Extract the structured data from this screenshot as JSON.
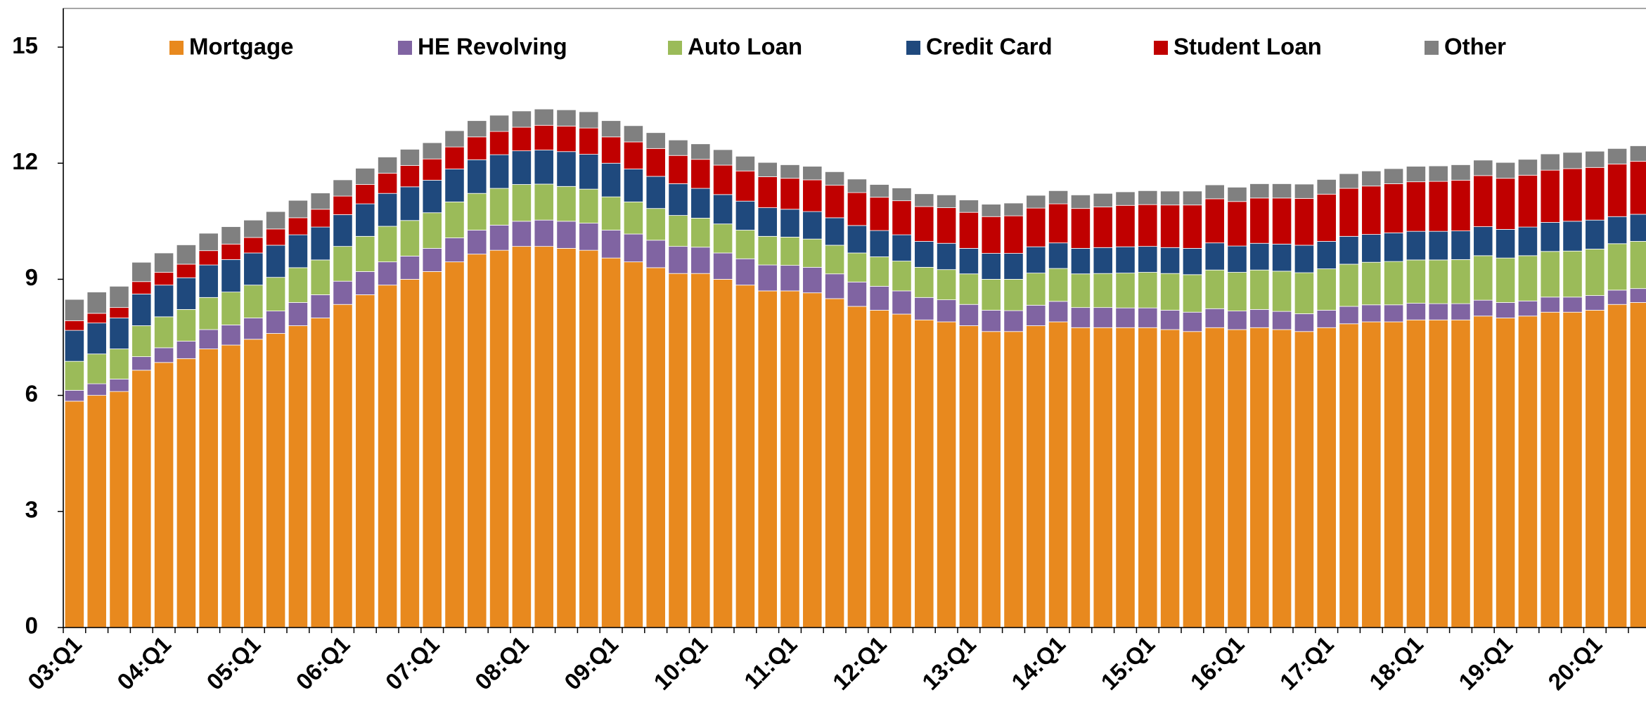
{
  "chart_data": {
    "type": "stacked_bar",
    "categories": [
      "03:Q1",
      null,
      null,
      null,
      "04:Q1",
      null,
      null,
      null,
      "05:Q1",
      null,
      null,
      null,
      "06:Q1",
      null,
      null,
      null,
      "07:Q1",
      null,
      null,
      null,
      "08:Q1",
      null,
      null,
      null,
      "09:Q1",
      null,
      null,
      null,
      "10:Q1",
      null,
      null,
      null,
      "11:Q1",
      null,
      null,
      null,
      "12:Q1",
      null,
      null,
      null,
      "13:Q1",
      null,
      null,
      null,
      "14:Q1",
      null,
      null,
      null,
      "15:Q1",
      null,
      null,
      null,
      "16:Q1",
      null,
      null,
      null,
      "17:Q1",
      null,
      null,
      null,
      "18:Q1",
      null,
      null,
      null,
      "19:Q1",
      null,
      null,
      null,
      "20:Q1",
      null,
      null
    ],
    "series": [
      {
        "name": "Mortgage",
        "color": "#e8891e",
        "values": [
          5.85,
          6.0,
          6.1,
          6.65,
          6.85,
          6.95,
          7.2,
          7.3,
          7.45,
          7.6,
          7.8,
          8.0,
          8.35,
          8.6,
          8.85,
          9.0,
          9.2,
          9.45,
          9.65,
          9.75,
          9.85,
          9.85,
          9.8,
          9.75,
          9.55,
          9.45,
          9.3,
          9.15,
          9.15,
          9.0,
          8.85,
          8.7,
          8.7,
          8.65,
          8.5,
          8.3,
          8.2,
          8.1,
          7.95,
          7.9,
          7.8,
          7.65,
          7.65,
          7.8,
          7.9,
          7.75,
          7.75,
          7.75,
          7.75,
          7.7,
          7.65,
          7.75,
          7.7,
          7.75,
          7.7,
          7.65,
          7.75,
          7.85,
          7.9,
          7.9,
          7.95,
          7.95,
          7.95,
          8.05,
          8.0,
          8.05,
          8.15,
          8.15,
          8.2,
          8.35,
          8.4
        ]
      },
      {
        "name": "HE Revolving",
        "color": "#8064a2",
        "values": [
          0.28,
          0.3,
          0.32,
          0.35,
          0.38,
          0.45,
          0.5,
          0.52,
          0.55,
          0.58,
          0.6,
          0.6,
          0.6,
          0.6,
          0.6,
          0.6,
          0.6,
          0.62,
          0.62,
          0.65,
          0.65,
          0.68,
          0.7,
          0.7,
          0.72,
          0.72,
          0.71,
          0.7,
          0.68,
          0.68,
          0.68,
          0.67,
          0.66,
          0.66,
          0.64,
          0.63,
          0.62,
          0.6,
          0.58,
          0.57,
          0.55,
          0.55,
          0.54,
          0.53,
          0.53,
          0.52,
          0.52,
          0.51,
          0.51,
          0.5,
          0.5,
          0.49,
          0.48,
          0.47,
          0.47,
          0.46,
          0.45,
          0.45,
          0.44,
          0.44,
          0.43,
          0.42,
          0.42,
          0.41,
          0.4,
          0.39,
          0.39,
          0.39,
          0.38,
          0.37,
          0.36
        ]
      },
      {
        "name": "Auto Loan",
        "color": "#9bbb59",
        "values": [
          0.75,
          0.77,
          0.78,
          0.8,
          0.8,
          0.82,
          0.83,
          0.85,
          0.85,
          0.87,
          0.9,
          0.9,
          0.9,
          0.91,
          0.92,
          0.92,
          0.92,
          0.93,
          0.95,
          0.95,
          0.95,
          0.93,
          0.9,
          0.88,
          0.86,
          0.83,
          0.82,
          0.8,
          0.75,
          0.75,
          0.74,
          0.74,
          0.73,
          0.73,
          0.74,
          0.75,
          0.76,
          0.77,
          0.78,
          0.78,
          0.79,
          0.8,
          0.81,
          0.83,
          0.85,
          0.87,
          0.88,
          0.9,
          0.92,
          0.95,
          0.97,
          1.0,
          1.0,
          1.02,
          1.04,
          1.06,
          1.07,
          1.09,
          1.1,
          1.12,
          1.12,
          1.13,
          1.14,
          1.15,
          1.15,
          1.17,
          1.18,
          1.19,
          1.2,
          1.2,
          1.22
        ]
      },
      {
        "name": "Credit Card",
        "color": "#1f497d",
        "values": [
          0.8,
          0.8,
          0.8,
          0.82,
          0.82,
          0.82,
          0.84,
          0.84,
          0.83,
          0.83,
          0.85,
          0.85,
          0.82,
          0.84,
          0.85,
          0.87,
          0.84,
          0.85,
          0.87,
          0.87,
          0.87,
          0.88,
          0.9,
          0.9,
          0.87,
          0.85,
          0.83,
          0.82,
          0.77,
          0.76,
          0.75,
          0.74,
          0.72,
          0.71,
          0.71,
          0.71,
          0.68,
          0.68,
          0.67,
          0.68,
          0.66,
          0.67,
          0.67,
          0.68,
          0.66,
          0.66,
          0.67,
          0.68,
          0.67,
          0.67,
          0.68,
          0.7,
          0.68,
          0.69,
          0.7,
          0.71,
          0.71,
          0.72,
          0.72,
          0.74,
          0.74,
          0.74,
          0.74,
          0.75,
          0.74,
          0.74,
          0.75,
          0.77,
          0.75,
          0.7,
          0.7
        ]
      },
      {
        "name": "Student Loan",
        "color": "#c00000",
        "values": [
          0.25,
          0.25,
          0.27,
          0.32,
          0.33,
          0.35,
          0.37,
          0.4,
          0.4,
          0.42,
          0.44,
          0.46,
          0.48,
          0.5,
          0.52,
          0.55,
          0.55,
          0.57,
          0.59,
          0.6,
          0.61,
          0.64,
          0.66,
          0.68,
          0.68,
          0.7,
          0.72,
          0.73,
          0.75,
          0.76,
          0.78,
          0.8,
          0.8,
          0.82,
          0.84,
          0.85,
          0.86,
          0.88,
          0.9,
          0.92,
          0.93,
          0.95,
          0.97,
          1.0,
          1.01,
          1.03,
          1.05,
          1.07,
          1.08,
          1.1,
          1.12,
          1.14,
          1.15,
          1.17,
          1.19,
          1.21,
          1.22,
          1.24,
          1.25,
          1.27,
          1.28,
          1.29,
          1.31,
          1.32,
          1.32,
          1.34,
          1.35,
          1.36,
          1.36,
          1.36,
          1.37
        ]
      },
      {
        "name": "Other",
        "color": "#808080",
        "values": [
          0.55,
          0.55,
          0.55,
          0.5,
          0.5,
          0.5,
          0.45,
          0.45,
          0.45,
          0.45,
          0.45,
          0.42,
          0.42,
          0.42,
          0.42,
          0.42,
          0.42,
          0.42,
          0.42,
          0.42,
          0.42,
          0.42,
          0.42,
          0.42,
          0.42,
          0.42,
          0.41,
          0.4,
          0.4,
          0.4,
          0.38,
          0.37,
          0.35,
          0.35,
          0.35,
          0.35,
          0.33,
          0.33,
          0.33,
          0.33,
          0.32,
          0.32,
          0.33,
          0.33,
          0.34,
          0.35,
          0.35,
          0.35,
          0.36,
          0.36,
          0.36,
          0.36,
          0.37,
          0.37,
          0.37,
          0.37,
          0.38,
          0.38,
          0.39,
          0.39,
          0.4,
          0.4,
          0.4,
          0.4,
          0.41,
          0.41,
          0.42,
          0.42,
          0.42,
          0.4,
          0.4
        ]
      }
    ],
    "ylim": [
      0,
      16
    ],
    "yticks": [
      0,
      3,
      6,
      9,
      12,
      15
    ],
    "grid": false,
    "legend": "top"
  }
}
